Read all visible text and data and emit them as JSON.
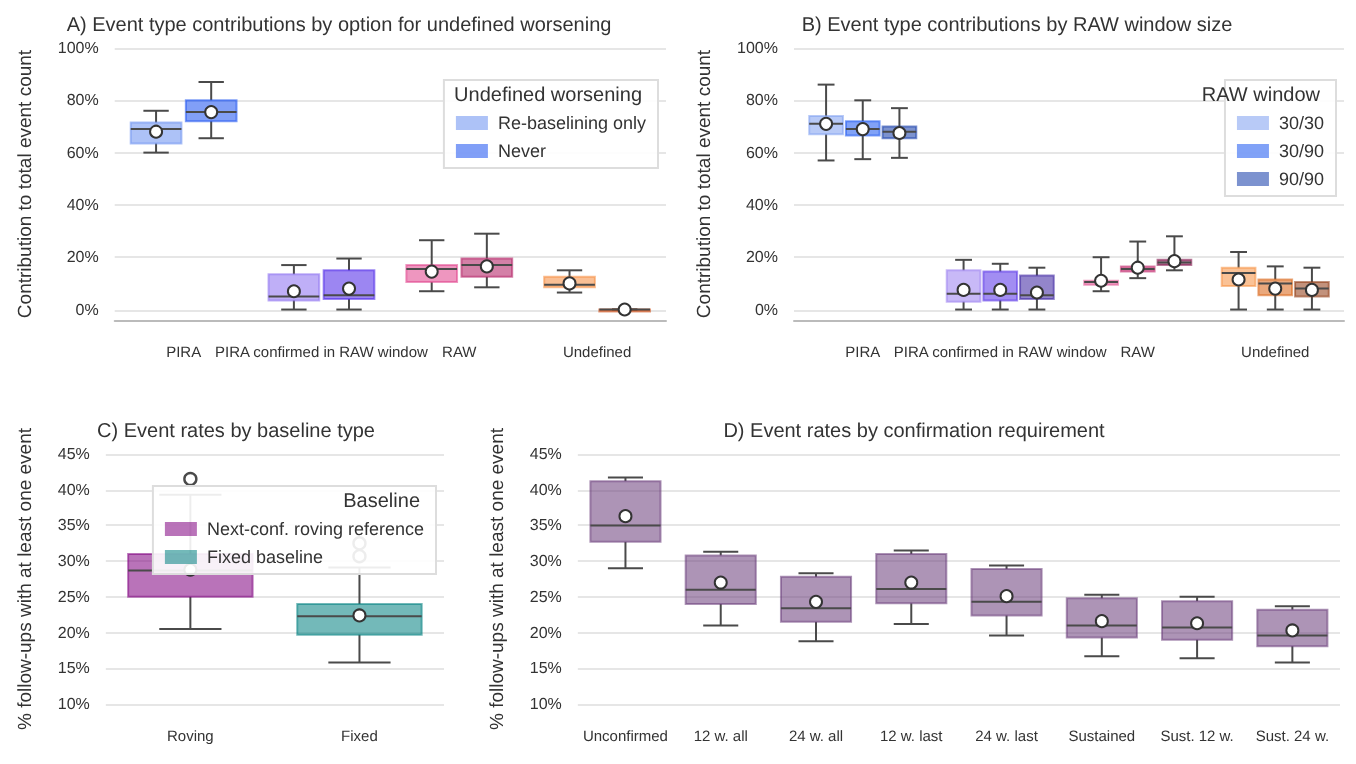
{
  "chart_data": [
    {
      "type": "box",
      "title": "A) Event type contributions by option for undefined worsening",
      "ylabel": "Contribution to total event count",
      "categories": [
        "PIRA",
        "PIRA confirmed in RAW window",
        "RAW",
        "Undefined"
      ],
      "legend_title": "Undefined worsening",
      "legend": "top right",
      "grid": "y",
      "ylim": [
        -4,
        100
      ],
      "yticks": [
        {
          "value": 0,
          "label": "0%"
        },
        {
          "value": 20,
          "label": "20%"
        },
        {
          "value": 40,
          "label": "40%"
        },
        {
          "value": 60,
          "label": "60%"
        },
        {
          "value": 80,
          "label": "80%"
        },
        {
          "value": 100,
          "label": "100%"
        }
      ],
      "series": [
        {
          "name": "Re-baselining only",
          "color": "#6a8ff0",
          "colors": [
            "#6a8ff0",
            "#8b6ef0",
            "#e0408a",
            "#f58a3c"
          ],
          "boxes": [
            {
              "low": 60,
              "q1": 63.5,
              "median": 69,
              "q3": 71.5,
              "high": 76,
              "mean": 68
            },
            {
              "low": 0,
              "q1": 3.5,
              "median": 5,
              "q3": 13.5,
              "high": 17,
              "mean": 7
            },
            {
              "low": 7,
              "q1": 10.5,
              "median": 15.5,
              "q3": 17,
              "high": 26.5,
              "mean": 14.5
            },
            {
              "low": 6.5,
              "q1": 8.5,
              "median": 9.5,
              "q3": 12.5,
              "high": 15,
              "mean": 10
            }
          ]
        },
        {
          "name": "Never",
          "color": "#1a50f0",
          "colors": [
            "#1a50f0",
            "#4a22e8",
            "#b0185e",
            "#d04a10"
          ],
          "boxes": [
            {
              "low": 65.5,
              "q1": 72,
              "median": 75.5,
              "q3": 80,
              "high": 87,
              "mean": 75.5
            },
            {
              "low": 0,
              "q1": 4,
              "median": 5.5,
              "q3": 15,
              "high": 19.5,
              "mean": 8
            },
            {
              "low": 8.5,
              "q1": 12.5,
              "median": 17,
              "q3": 19.5,
              "high": 29,
              "mean": 16.5
            },
            {
              "low": 0,
              "q1": 0,
              "median": 0,
              "q3": 0,
              "high": 0,
              "mean": 0
            }
          ]
        }
      ]
    },
    {
      "type": "box",
      "title": "B) Event type contributions by RAW window size",
      "ylabel": "Contribution to total event count",
      "categories": [
        "PIRA",
        "PIRA confirmed in RAW window",
        "RAW",
        "Undefined"
      ],
      "legend_title": "RAW window",
      "legend": "top right",
      "grid": "y",
      "ylim": [
        -4,
        100
      ],
      "yticks": [
        {
          "value": 0,
          "label": "0%"
        },
        {
          "value": 20,
          "label": "20%"
        },
        {
          "value": 40,
          "label": "40%"
        },
        {
          "value": 60,
          "label": "60%"
        },
        {
          "value": 80,
          "label": "80%"
        },
        {
          "value": 100,
          "label": "100%"
        }
      ],
      "series": [
        {
          "name": "30/30",
          "color": "#7e9ff0",
          "colors": [
            "#7e9ff0",
            "#9b80f0",
            "#e0508f",
            "#f59040"
          ],
          "boxes": [
            {
              "low": 57,
              "q1": 67,
              "median": 71,
              "q3": 74,
              "high": 86,
              "mean": 71
            },
            {
              "low": 0,
              "q1": 3,
              "median": 6,
              "q3": 15,
              "high": 19,
              "mean": 7.5
            },
            {
              "low": 7,
              "q1": 9.5,
              "median": 10.5,
              "q3": 11,
              "high": 20,
              "mean": 11
            },
            {
              "low": 0,
              "q1": 9,
              "median": 14,
              "q3": 16,
              "high": 22,
              "mean": 11.5
            }
          ]
        },
        {
          "name": "30/90",
          "color": "#1a55f0",
          "colors": [
            "#1a55f0",
            "#5530e8",
            "#c02068",
            "#d86010"
          ],
          "boxes": [
            {
              "low": 57.5,
              "q1": 66.5,
              "median": 69,
              "q3": 72,
              "high": 80,
              "mean": 69
            },
            {
              "low": 0,
              "q1": 3.5,
              "median": 6,
              "q3": 14.5,
              "high": 17.5,
              "mean": 7.5
            },
            {
              "low": 12,
              "q1": 14.5,
              "median": 15.5,
              "q3": 16.5,
              "high": 26,
              "mean": 16
            },
            {
              "low": 0,
              "q1": 5.5,
              "median": 10,
              "q3": 11.5,
              "high": 16.5,
              "mean": 8
            }
          ]
        },
        {
          "name": "90/90",
          "color": "#1038a8",
          "colors": [
            "#1038a8",
            "#3a20a0",
            "#801048",
            "#903810"
          ],
          "boxes": [
            {
              "low": 58,
              "q1": 65.5,
              "median": 68,
              "q3": 70,
              "high": 77,
              "mean": 67.5
            },
            {
              "low": 0,
              "q1": 4,
              "median": 5.5,
              "q3": 13,
              "high": 16,
              "mean": 6.5
            },
            {
              "low": 15,
              "q1": 17,
              "median": 18,
              "q3": 19,
              "high": 28,
              "mean": 18.5
            },
            {
              "low": 0,
              "q1": 5,
              "median": 8,
              "q3": 10.5,
              "high": 16,
              "mean": 7.5
            }
          ]
        }
      ]
    },
    {
      "type": "box",
      "title": "C) Event rates by baseline type",
      "ylabel": "% follow-ups with at least one event",
      "categories": [
        "Roving",
        "Fixed"
      ],
      "legend_title": "Baseline",
      "legend": "top right",
      "grid": "y",
      "ylim": [
        10,
        45
      ],
      "yticks": [
        {
          "value": 10,
          "label": "10%"
        },
        {
          "value": 15,
          "label": "15%"
        },
        {
          "value": 20,
          "label": "20%"
        },
        {
          "value": 25,
          "label": "25%"
        },
        {
          "value": 30,
          "label": "30%"
        },
        {
          "value": 35,
          "label": "35%"
        },
        {
          "value": 40,
          "label": "40%"
        },
        {
          "value": 45,
          "label": "45%"
        }
      ],
      "series": [
        {
          "name": "Next-conf. roving reference",
          "color": "#800080",
          "boxes": [
            {
              "low": 20.5,
              "q1": 25,
              "median": 28.7,
              "q3": 31,
              "high": 39.3,
              "mean": 28.8,
              "outliers": [
                41.5
              ]
            },
            null
          ]
        },
        {
          "name": "Fixed baseline",
          "color": "#008080",
          "boxes": [
            null,
            {
              "low": 15.8,
              "q1": 19.7,
              "median": 22.3,
              "q3": 24,
              "high": 29.1,
              "mean": 22.4,
              "outliers": [
                30.7,
                32.5
              ]
            }
          ]
        }
      ]
    },
    {
      "type": "box",
      "title": "D) Event rates by confirmation requirement",
      "ylabel": "% follow-ups with at least one event",
      "categories": [
        "Unconfirmed",
        "12 w. all",
        "24 w. all",
        "12 w. last",
        "24 w. last",
        "Sustained",
        "Sust. 12 w.",
        "Sust. 24 w."
      ],
      "grid": "y",
      "ylim": [
        10,
        45
      ],
      "yticks": [
        {
          "value": 10,
          "label": "10%"
        },
        {
          "value": 15,
          "label": "15%"
        },
        {
          "value": 20,
          "label": "20%"
        },
        {
          "value": 25,
          "label": "25%"
        },
        {
          "value": 30,
          "label": "30%"
        },
        {
          "value": 35,
          "label": "35%"
        },
        {
          "value": 40,
          "label": "40%"
        },
        {
          "value": 45,
          "label": "45%"
        }
      ],
      "series": [
        {
          "color": "#6a3d7a",
          "boxes": [
            {
              "low": 29,
              "q1": 32.7,
              "median": 35,
              "q3": 41.2,
              "high": 41.7,
              "mean": 36.3
            },
            {
              "low": 21,
              "q1": 24,
              "median": 26,
              "q3": 30.8,
              "high": 31.3,
              "mean": 27
            },
            {
              "low": 18.8,
              "q1": 21.5,
              "median": 23.4,
              "q3": 27.8,
              "high": 28.3,
              "mean": 24.3
            },
            {
              "low": 21.2,
              "q1": 24.1,
              "median": 26.1,
              "q3": 31,
              "high": 31.5,
              "mean": 27
            },
            {
              "low": 19.6,
              "q1": 22.4,
              "median": 24.3,
              "q3": 28.9,
              "high": 29.4,
              "mean": 25.1
            },
            {
              "low": 16.7,
              "q1": 19.3,
              "median": 21,
              "q3": 24.8,
              "high": 25.3,
              "mean": 21.6
            },
            {
              "low": 16.4,
              "q1": 19,
              "median": 20.7,
              "q3": 24.4,
              "high": 25,
              "mean": 21.3
            },
            {
              "low": 15.8,
              "q1": 18.1,
              "median": 19.6,
              "q3": 23.2,
              "high": 23.7,
              "mean": 20.3
            }
          ]
        }
      ]
    }
  ]
}
